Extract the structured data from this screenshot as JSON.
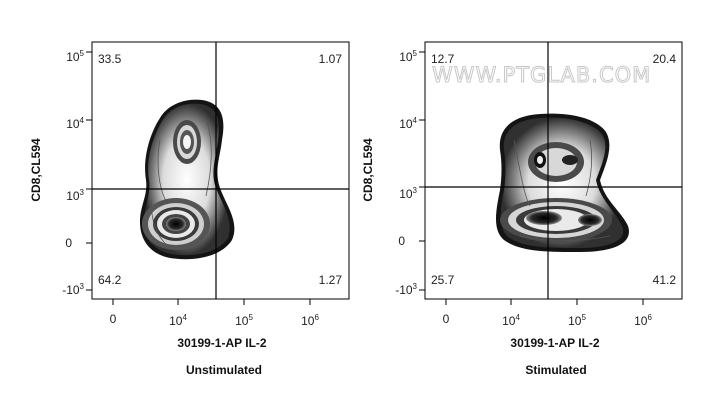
{
  "watermark": "WWW.PTGLAB.COM",
  "chart_data": [
    {
      "type": "contour",
      "condition": "Unstimulated",
      "xlabel": "30199-1-AP IL-2",
      "ylabel": "CD8,CL594",
      "x_ticks": [
        {
          "base": "0",
          "exp": ""
        },
        {
          "base": "10",
          "exp": "4"
        },
        {
          "base": "10",
          "exp": "5"
        },
        {
          "base": "10",
          "exp": "6"
        }
      ],
      "y_ticks": [
        {
          "base": "-10",
          "exp": "3"
        },
        {
          "base": "0",
          "exp": ""
        },
        {
          "base": "10",
          "exp": "3"
        },
        {
          "base": "10",
          "exp": "4"
        },
        {
          "base": "10",
          "exp": "5"
        }
      ],
      "quadrants": {
        "top_left": "33.5",
        "top_right": "1.07",
        "bottom_left": "64.2",
        "bottom_right": "1.27"
      }
    },
    {
      "type": "contour",
      "condition": "Stimulated",
      "xlabel": "30199-1-AP IL-2",
      "ylabel": "CD8,CL594",
      "x_ticks": [
        {
          "base": "0",
          "exp": ""
        },
        {
          "base": "10",
          "exp": "4"
        },
        {
          "base": "10",
          "exp": "5"
        },
        {
          "base": "10",
          "exp": "6"
        }
      ],
      "y_ticks": [
        {
          "base": "-10",
          "exp": "3"
        },
        {
          "base": "0",
          "exp": ""
        },
        {
          "base": "10",
          "exp": "3"
        },
        {
          "base": "10",
          "exp": "4"
        },
        {
          "base": "10",
          "exp": "5"
        }
      ],
      "quadrants": {
        "top_left": "12.7",
        "top_right": "20.4",
        "bottom_left": "25.7",
        "bottom_right": "41.2"
      }
    }
  ]
}
